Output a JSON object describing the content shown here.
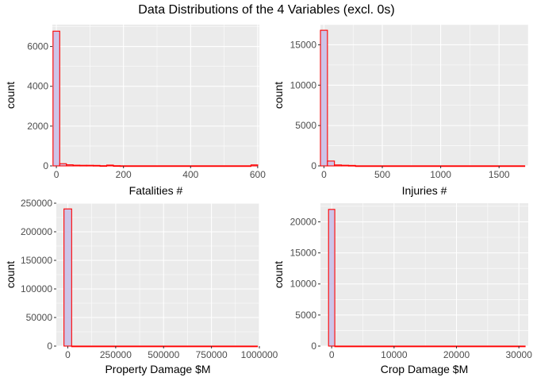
{
  "title": "Data Distributions of the 4 Variables (excl. 0s)",
  "style": {
    "fill": "#CDC4E8",
    "stroke": "#FF0000",
    "panel": "#EBEBEB",
    "grid": "#FFFFFF"
  },
  "chart_data": [
    {
      "type": "bar",
      "id": "fatalities",
      "xlabel": "Fatalities #",
      "ylabel": "count",
      "xlim": [
        -12,
        605
      ],
      "ylim": [
        0,
        7100
      ],
      "xticks": [
        0,
        200,
        400,
        600
      ],
      "yticks": [
        0,
        2000,
        4000,
        6000
      ],
      "bins": [
        {
          "start": -10,
          "end": 10,
          "count": 6770
        },
        {
          "start": 10,
          "end": 30,
          "count": 110
        },
        {
          "start": 30,
          "end": 50,
          "count": 55
        },
        {
          "start": 50,
          "end": 70,
          "count": 35
        },
        {
          "start": 70,
          "end": 90,
          "count": 30
        },
        {
          "start": 90,
          "end": 110,
          "count": 30
        },
        {
          "start": 110,
          "end": 130,
          "count": 25
        },
        {
          "start": 130,
          "end": 150,
          "count": 10
        },
        {
          "start": 150,
          "end": 170,
          "count": 40
        },
        {
          "start": 170,
          "end": 190,
          "count": 10
        },
        {
          "start": 190,
          "end": 580,
          "count": 5
        },
        {
          "start": 580,
          "end": 600,
          "count": 50
        }
      ]
    },
    {
      "type": "bar",
      "id": "injuries",
      "xlabel": "Injuries #",
      "ylabel": "count",
      "xlim": [
        -30,
        1750
      ],
      "ylim": [
        0,
        17500
      ],
      "xticks": [
        0,
        500,
        1000,
        1500
      ],
      "yticks": [
        0,
        5000,
        10000,
        15000
      ],
      "bins": [
        {
          "start": -30,
          "end": 30,
          "count": 16800
        },
        {
          "start": 30,
          "end": 90,
          "count": 600
        },
        {
          "start": 90,
          "end": 150,
          "count": 120
        },
        {
          "start": 150,
          "end": 210,
          "count": 80
        },
        {
          "start": 210,
          "end": 270,
          "count": 60
        },
        {
          "start": 270,
          "end": 1720,
          "count": 10
        }
      ]
    },
    {
      "type": "bar",
      "id": "property",
      "xlabel": "Property Damage $M",
      "ylabel": "count",
      "xlim": [
        -60000,
        1000000
      ],
      "ylim": [
        0,
        250000
      ],
      "xticks": [
        0,
        250000,
        500000,
        750000,
        1000000
      ],
      "xtick_labels": [
        "0",
        "250000",
        "500000",
        "750000",
        "1000000"
      ],
      "yticks": [
        0,
        50000,
        100000,
        150000,
        200000,
        250000
      ],
      "bins": [
        {
          "start": -20000,
          "end": 20000,
          "count": 240000
        },
        {
          "start": 20000,
          "end": 990000,
          "count": 0
        }
      ]
    },
    {
      "type": "bar",
      "id": "crop",
      "xlabel": "Crop Damage $M",
      "ylabel": "count",
      "xlim": [
        -1800,
        31500
      ],
      "ylim": [
        0,
        23000
      ],
      "xticks": [
        0,
        10000,
        20000,
        30000
      ],
      "yticks": [
        0,
        5000,
        10000,
        15000,
        20000
      ],
      "bins": [
        {
          "start": -500,
          "end": 500,
          "count": 22000
        },
        {
          "start": 500,
          "end": 31000,
          "count": 0
        }
      ]
    }
  ]
}
